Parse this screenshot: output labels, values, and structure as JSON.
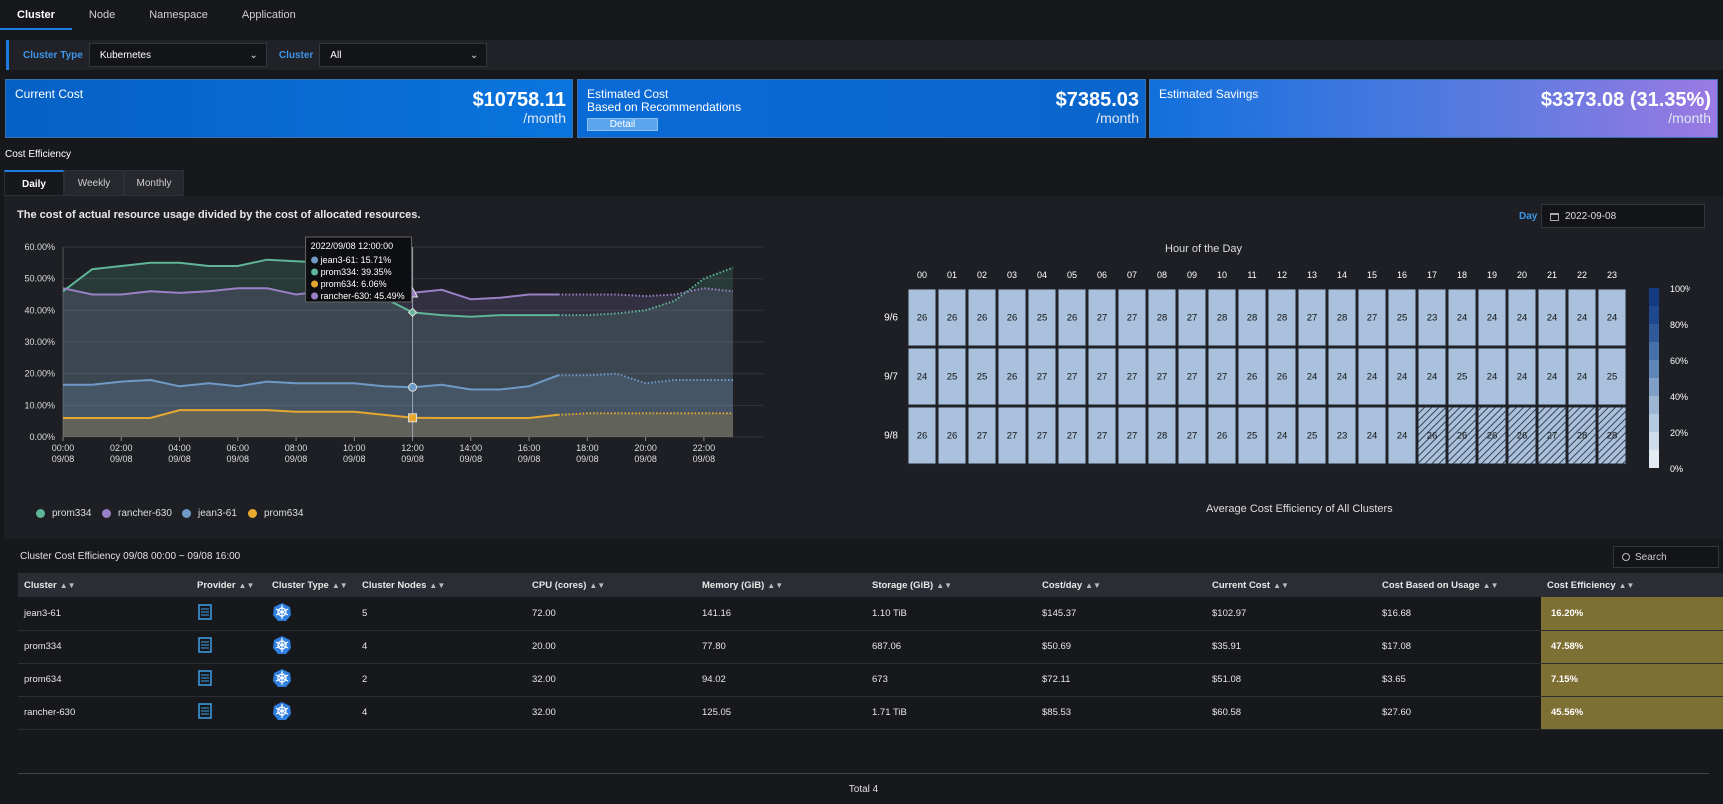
{
  "tabs": [
    "Cluster",
    "Node",
    "Namespace",
    "Application"
  ],
  "filters": {
    "cluster_type_label": "Cluster Type",
    "cluster_type_value": "Kubernetes",
    "cluster_label": "Cluster",
    "cluster_value": "All"
  },
  "cards": {
    "current": {
      "title": "Current Cost",
      "value": "$10758.11",
      "unit": "/month"
    },
    "estimated": {
      "title": "Estimated Cost",
      "subtitle": "Based on Recommendations",
      "button": "Detail",
      "value": "$7385.03",
      "unit": "/month"
    },
    "savings": {
      "title": "Estimated Savings",
      "value": "$3373.08 (31.35%)",
      "unit": "/month"
    }
  },
  "section_title": "Cost Efficiency",
  "subtabs": [
    "Daily",
    "Weekly",
    "Monthly"
  ],
  "description": "The cost of actual resource usage divided by the cost of allocated resources.",
  "day_label": "Day",
  "day_value": "2022-09-08",
  "chart_data": {
    "type": "area",
    "ylim": [
      0,
      60
    ],
    "yticks": [
      "60.00%",
      "50.00%",
      "40.00%",
      "30.00%",
      "20.00%",
      "10.00%",
      "0.00%"
    ],
    "xticks": [
      [
        "00:00",
        "09/08"
      ],
      [
        "02:00",
        "09/08"
      ],
      [
        "04:00",
        "09/08"
      ],
      [
        "06:00",
        "09/08"
      ],
      [
        "08:00",
        "09/08"
      ],
      [
        "10:00",
        "09/08"
      ],
      [
        "12:00",
        "09/08"
      ],
      [
        "14:00",
        "09/08"
      ],
      [
        "16:00",
        "09/08"
      ],
      [
        "18:00",
        "09/08"
      ],
      [
        "20:00",
        "09/08"
      ],
      [
        "22:00",
        "09/08"
      ]
    ],
    "x_hours": [
      0,
      1,
      2,
      3,
      4,
      5,
      6,
      7,
      8,
      9,
      10,
      11,
      12,
      13,
      14,
      15,
      16,
      17,
      18,
      19,
      20,
      21,
      22,
      23
    ],
    "forecast_from_hour": 17,
    "series": [
      {
        "name": "prom334",
        "color": "#5fb595",
        "values": [
          46,
          53,
          54,
          55,
          55,
          54,
          54,
          56,
          55.5,
          55,
          50,
          44,
          39.35,
          38.5,
          38,
          38.5,
          38.5,
          38.5,
          38.5,
          39,
          40,
          43,
          50,
          53.5
        ]
      },
      {
        "name": "rancher-630",
        "color": "#9a80c6",
        "values": [
          47,
          45,
          45,
          46,
          45.5,
          46,
          47,
          47,
          45,
          46,
          47,
          46.5,
          45.49,
          46.5,
          43.5,
          44,
          45,
          45,
          45,
          45,
          44.5,
          45,
          47,
          46
        ]
      },
      {
        "name": "jean3-61",
        "color": "#6f99c6",
        "values": [
          16.5,
          16.5,
          17.5,
          18,
          16,
          17,
          16,
          17.5,
          17,
          17,
          17,
          16,
          15.71,
          16.5,
          15,
          15,
          16,
          19.5,
          19.5,
          20,
          17,
          18,
          18,
          18
        ]
      },
      {
        "name": "prom634",
        "color": "#e6a82e",
        "values": [
          6,
          6,
          6,
          6,
          8.5,
          8.5,
          8.5,
          8.5,
          8,
          8,
          8,
          7,
          6.06,
          6,
          6,
          6,
          6,
          7,
          7.5,
          7.5,
          7.5,
          7.5,
          7.5,
          7.5
        ]
      }
    ],
    "tooltip": {
      "title": "2022/09/08 12:00:00",
      "lines": [
        "jean3-61: 15.71%",
        "prom334: 39.35%",
        "prom634: 6.06%",
        "rancher-630: 45.49%"
      ]
    }
  },
  "legend": [
    {
      "name": "prom334",
      "color": "#5fb595"
    },
    {
      "name": "rancher-630",
      "color": "#9a80c6"
    },
    {
      "name": "jean3-61",
      "color": "#6f99c6"
    },
    {
      "name": "prom634",
      "color": "#e6a82e"
    }
  ],
  "heatmap": {
    "title": "Hour of the Day",
    "subtitle": "Average Cost Efficiency of All Clusters",
    "hours": [
      "00",
      "01",
      "02",
      "03",
      "04",
      "05",
      "06",
      "07",
      "08",
      "09",
      "10",
      "11",
      "12",
      "13",
      "14",
      "15",
      "16",
      "17",
      "18",
      "19",
      "20",
      "21",
      "22",
      "23"
    ],
    "rows": [
      {
        "label": "9/6",
        "values": [
          26,
          26,
          26,
          26,
          25,
          26,
          27,
          27,
          28,
          27,
          28,
          28,
          28,
          27,
          28,
          27,
          25,
          23,
          24,
          24,
          24,
          24,
          24,
          24
        ],
        "forecast_from": 24
      },
      {
        "label": "9/7",
        "values": [
          24,
          25,
          25,
          26,
          27,
          27,
          27,
          27,
          27,
          27,
          27,
          26,
          26,
          24,
          24,
          24,
          24,
          24,
          25,
          24,
          24,
          24,
          24,
          25
        ],
        "forecast_from": 24
      },
      {
        "label": "9/8",
        "values": [
          26,
          26,
          27,
          27,
          27,
          27,
          27,
          27,
          28,
          27,
          26,
          25,
          24,
          25,
          23,
          24,
          24,
          26,
          26,
          26,
          26,
          27,
          28,
          28
        ],
        "forecast_from": 17
      }
    ],
    "scale": [
      "100%",
      "80%",
      "60%",
      "40%",
      "20%",
      "0%"
    ]
  },
  "table": {
    "title": "Cluster Cost Efficiency 09/08 00:00 ~ 09/08 16:00",
    "search_placeholder": "Search",
    "columns": [
      "Cluster",
      "Provider",
      "Cluster Type",
      "Cluster Nodes",
      "CPU (cores)",
      "Memory (GiB)",
      "Storage (GiB)",
      "Cost/day",
      "Current Cost",
      "Cost Based on Usage",
      "Cost Efficiency"
    ],
    "rows": [
      [
        "jean3-61",
        "",
        "",
        "5",
        "72.00",
        "141.16",
        "1.10 TiB",
        "$145.37",
        "$102.97",
        "$16.68",
        "16.20%"
      ],
      [
        "prom334",
        "",
        "",
        "4",
        "20.00",
        "77.80",
        "687.06",
        "$50.69",
        "$35.91",
        "$17.08",
        "47.58%"
      ],
      [
        "prom634",
        "",
        "",
        "2",
        "32.00",
        "94.02",
        "673",
        "$72.11",
        "$51.08",
        "$3.65",
        "7.15%"
      ],
      [
        "rancher-630",
        "",
        "",
        "4",
        "32.00",
        "125.05",
        "1.71 TiB",
        "$85.53",
        "$60.58",
        "$27.60",
        "45.56%"
      ]
    ],
    "total": "Total 4"
  }
}
